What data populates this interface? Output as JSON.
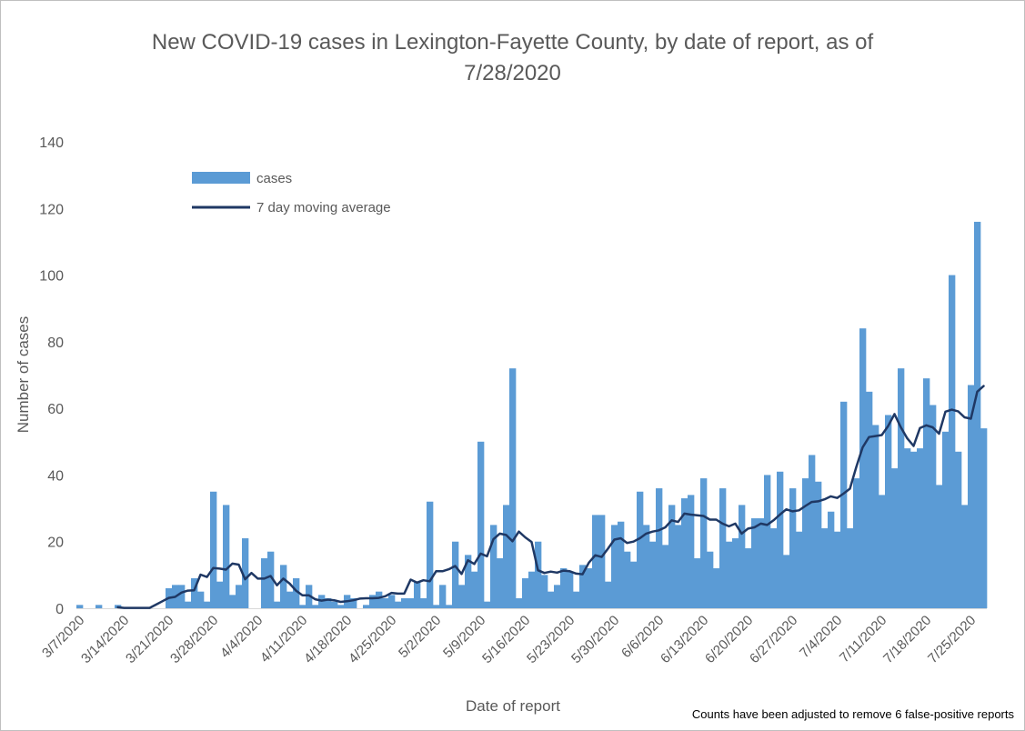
{
  "chart_data": {
    "type": "bar",
    "title_line1": "New COVID-19 cases in Lexington-Fayette County, by date of report, as of",
    "title_line2": "7/28/2020",
    "xlabel": "Date of report",
    "ylabel": "Number of cases",
    "ylim": [
      0,
      140
    ],
    "yticks": [
      0,
      20,
      40,
      60,
      80,
      100,
      120,
      140
    ],
    "grid": false,
    "legend_position": "top-left",
    "start_date": "3/7/2020",
    "x_tick_labels": [
      "3/7/2020",
      "3/14/2020",
      "3/21/2020",
      "3/28/2020",
      "4/4/2020",
      "4/11/2020",
      "4/18/2020",
      "4/25/2020",
      "5/2/2020",
      "5/9/2020",
      "5/16/2020",
      "5/23/2020",
      "5/30/2020",
      "6/6/2020",
      "6/13/2020",
      "6/20/2020",
      "6/27/2020",
      "7/4/2020",
      "7/11/2020",
      "7/18/2020",
      "7/25/2020"
    ],
    "series": [
      {
        "name": "cases",
        "kind": "bar",
        "color": "#5b9bd5",
        "values": [
          1,
          0,
          0,
          1,
          0,
          0,
          1,
          0,
          0,
          0,
          0,
          0,
          0,
          0,
          6,
          7,
          7,
          2,
          9,
          5,
          2,
          35,
          8,
          31,
          4,
          7,
          21,
          0,
          0,
          15,
          17,
          2,
          13,
          5,
          9,
          1,
          7,
          1,
          4,
          3,
          2,
          1,
          4,
          3,
          0,
          1,
          4,
          5,
          3,
          4,
          2,
          3,
          3,
          8,
          3,
          32,
          1,
          7,
          1,
          20,
          7,
          16,
          11,
          50,
          2,
          25,
          15,
          31,
          72,
          3,
          9,
          11,
          20,
          10,
          5,
          7,
          12,
          11,
          5,
          13,
          12,
          28,
          28,
          8,
          25,
          26,
          17,
          14,
          35,
          25,
          20,
          36,
          19,
          31,
          25,
          33,
          34,
          15,
          39,
          17,
          12,
          36,
          20,
          21,
          31,
          18,
          27,
          27,
          40,
          24,
          41,
          16,
          36,
          23,
          39,
          46,
          38,
          24,
          29,
          23,
          62,
          24,
          39,
          84,
          65,
          55,
          34,
          58,
          42,
          72,
          48,
          47,
          48,
          69,
          61,
          37,
          53,
          100,
          47,
          31,
          67,
          116,
          54
        ]
      },
      {
        "name": "7 day moving average",
        "kind": "line",
        "color": "#1f3864",
        "start_index": 6,
        "values": [
          0.3,
          0.1,
          0.1,
          0.1,
          0.1,
          0.1,
          1.1,
          2.1,
          3.1,
          3.4,
          4.7,
          5.3,
          5.4,
          10.1,
          9.4,
          12.1,
          11.9,
          11.6,
          13.4,
          13.1,
          8.7,
          10.6,
          8.9,
          8.9,
          9.7,
          6.9,
          8.9,
          7.4,
          5.3,
          3.9,
          3.9,
          2.7,
          2.3,
          2.6,
          2.4,
          1.9,
          2.1,
          2.4,
          2.9,
          3.0,
          3.0,
          3.1,
          3.6,
          4.6,
          4.4,
          4.4,
          8.6,
          7.7,
          8.4,
          8.1,
          11.1,
          11.1,
          11.7,
          12.7,
          10.3,
          14.4,
          13.3,
          16.4,
          15.6,
          20.7,
          22.4,
          22.0,
          20.1,
          23.0,
          21.3,
          19.9,
          11.4,
          10.6,
          11.0,
          10.7,
          11.3,
          11.1,
          10.4,
          10.2,
          13.7,
          15.9,
          15.4,
          17.9,
          20.6,
          21.0,
          19.6,
          20.0,
          21.0,
          22.4,
          23.0,
          23.4,
          24.3,
          26.4,
          25.9,
          28.4,
          28.1,
          27.9,
          27.7,
          26.6,
          26.6,
          25.4,
          24.6,
          25.4,
          22.4,
          23.9,
          24.3,
          25.4,
          25.0,
          26.4,
          28.1,
          29.7,
          29.1,
          29.4,
          30.7,
          31.9,
          32.1,
          32.7,
          33.6,
          33.1,
          34.4,
          35.9,
          42.4,
          48.3,
          51.4,
          51.7,
          52.0,
          54.7,
          58.3,
          54.3,
          51.0,
          48.7,
          54.1,
          54.9,
          54.3,
          52.4,
          59.0,
          59.6,
          59.1,
          57.3,
          56.9,
          65.0,
          66.7
        ]
      }
    ],
    "note": "Counts have been adjusted to remove 6 false-positive reports"
  }
}
